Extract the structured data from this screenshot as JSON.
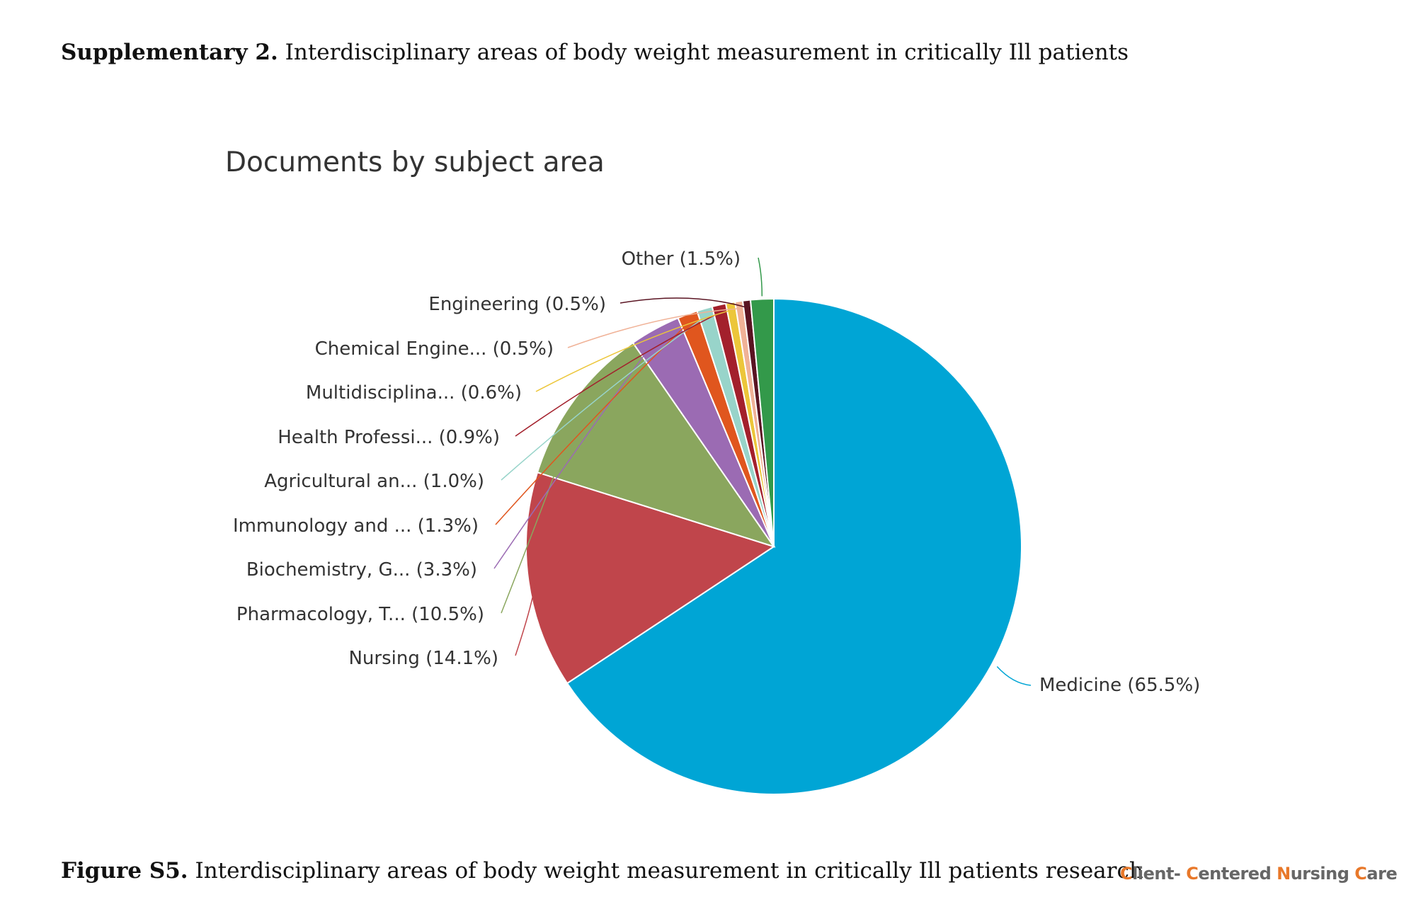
{
  "heading": {
    "label": "Supplementary 2.",
    "text": " Interdisciplinary areas of body weight measurement in critically Ill patients"
  },
  "chart_data": {
    "type": "pie",
    "title": "Documents by subject area",
    "start_angle_deg": 0,
    "direction": "clockwise",
    "slices": [
      {
        "label": "Medicine",
        "value": 65.5,
        "display": "Medicine (65.5%)",
        "color": "#00a5d5"
      },
      {
        "label": "Nursing",
        "value": 14.1,
        "display": "Nursing (14.1%)",
        "color": "#c0454b"
      },
      {
        "label": "Pharmacology, T...",
        "value": 10.5,
        "display": "Pharmacology, T... (10.5%)",
        "color": "#8aa65e"
      },
      {
        "label": "Biochemistry, G...",
        "value": 3.3,
        "display": "Biochemistry, G... (3.3%)",
        "color": "#9b6bb3"
      },
      {
        "label": "Immunology and ...",
        "value": 1.3,
        "display": "Immunology and ... (1.3%)",
        "color": "#e0561e"
      },
      {
        "label": "Agricultural an...",
        "value": 1.0,
        "display": "Agricultural an... (1.0%)",
        "color": "#98d4ca"
      },
      {
        "label": "Health Professi...",
        "value": 0.9,
        "display": "Health Professi... (0.9%)",
        "color": "#a3202c"
      },
      {
        "label": "Multidisciplina...",
        "value": 0.6,
        "display": "Multidisciplina... (0.6%)",
        "color": "#ecc63a"
      },
      {
        "label": "Chemical Engine...",
        "value": 0.5,
        "display": "Chemical Engine... (0.5%)",
        "color": "#f0b297"
      },
      {
        "label": "Engineering",
        "value": 0.5,
        "display": "Engineering (0.5%)",
        "color": "#5a1422"
      },
      {
        "label": "Other",
        "value": 1.5,
        "display": "Other (1.5%)",
        "color": "#33994a"
      }
    ]
  },
  "caption": {
    "label": "Figure S5.",
    "text": " Interdisciplinary areas of body weight measurement in critically Ill patients research"
  },
  "logo": {
    "c1": "C",
    "r1": "lient- ",
    "c2": "C",
    "r2": "entered ",
    "c3": "N",
    "r3": "ursing ",
    "c4": "C",
    "r4": "are"
  }
}
